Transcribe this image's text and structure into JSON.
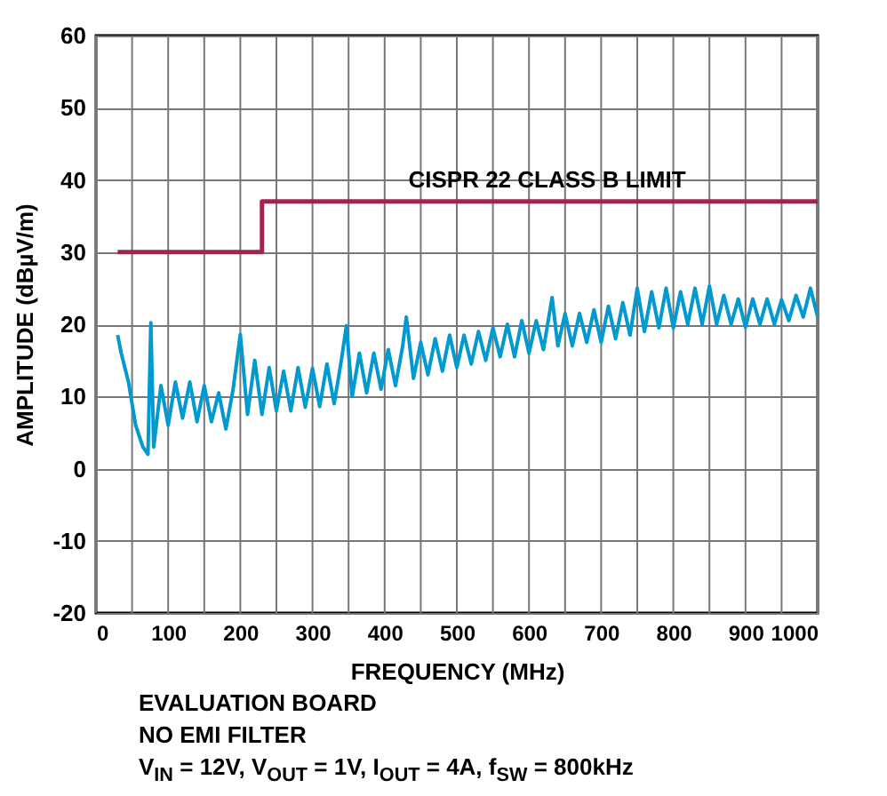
{
  "chart_data": {
    "type": "line",
    "xlabel": "FREQUENCY (MHz)",
    "ylabel": "AMPLITUDE (dBµV/m)",
    "xlim": [
      0,
      1000
    ],
    "ylim": [
      -20,
      60
    ],
    "xticks": [
      0,
      {
        "value": 50,
        "label": null
      },
      100,
      {
        "value": 150,
        "label": null
      },
      200,
      {
        "value": 250,
        "label": null
      },
      300,
      {
        "value": 350,
        "label": null
      },
      400,
      {
        "value": 450,
        "label": null
      },
      500,
      {
        "value": 550,
        "label": null
      },
      600,
      {
        "value": 650,
        "label": null
      },
      700,
      {
        "value": 750,
        "label": null
      },
      800,
      {
        "value": 850,
        "label": null
      },
      900,
      {
        "value": 950,
        "label": null
      },
      1000
    ],
    "yticks": [
      -20,
      -10,
      0,
      10,
      20,
      30,
      40,
      50,
      60
    ],
    "grid": true,
    "series": [
      {
        "type": "line",
        "color": "#0099d0",
        "x": [
          30,
          35,
          45,
          55,
          65,
          72,
          76,
          80,
          90,
          100,
          110,
          120,
          130,
          140,
          150,
          160,
          170,
          180,
          190,
          200,
          210,
          220,
          230,
          240,
          250,
          260,
          270,
          280,
          290,
          300,
          310,
          320,
          330,
          340,
          347,
          355,
          365,
          375,
          385,
          395,
          405,
          415,
          425,
          430,
          440,
          450,
          460,
          470,
          480,
          490,
          500,
          510,
          520,
          530,
          540,
          550,
          560,
          570,
          580,
          590,
          600,
          610,
          620,
          632,
          640,
          650,
          660,
          670,
          680,
          690,
          700,
          710,
          720,
          730,
          740,
          750,
          760,
          770,
          780,
          790,
          800,
          810,
          820,
          830,
          840,
          850,
          860,
          870,
          880,
          890,
          900,
          910,
          920,
          930,
          940,
          950,
          960,
          970,
          980,
          990,
          1000
        ],
        "values": [
          18.5,
          16,
          12,
          6,
          3,
          2,
          20.2,
          3,
          11.5,
          6,
          12,
          7,
          12,
          6.5,
          11.5,
          6.5,
          10.5,
          5.5,
          11,
          18.6,
          7.5,
          15,
          7.5,
          14,
          8,
          13.5,
          8,
          14,
          8.5,
          13.9,
          8.6,
          14.5,
          9,
          15,
          19.8,
          10,
          16,
          10.5,
          16,
          11,
          16.5,
          11.5,
          17,
          21,
          12.5,
          17.5,
          13,
          18,
          13.5,
          18.5,
          14,
          18.5,
          14.5,
          19,
          15,
          19.5,
          15.5,
          20,
          15.5,
          20.5,
          16,
          20.5,
          16.5,
          23.7,
          17,
          21.5,
          17,
          21.5,
          17.5,
          22,
          17.5,
          22.5,
          18,
          23,
          18.5,
          25,
          19,
          24.5,
          19.5,
          25,
          19.5,
          24.5,
          20,
          25,
          20,
          25.3,
          20,
          24,
          20,
          23.5,
          19.6,
          23.5,
          20,
          23.5,
          20,
          23.4,
          20.5,
          24,
          21,
          25,
          21
        ]
      },
      {
        "type": "step",
        "color": "#a0254a",
        "x": [
          30,
          230,
          1000
        ],
        "values": [
          30,
          37,
          37
        ]
      }
    ],
    "annotations": [
      {
        "text": "CISPR 22 CLASS B LIMIT",
        "x": 625,
        "y": 37
      },
      "EVALUATION BOARD",
      "NO EMI FILTER",
      "V$_{IN}$ = 12V, V$_{OUT}$ = 1V, I$_{OUT}$ = 4A, f$_{SW}$ = 800kHz"
    ]
  }
}
